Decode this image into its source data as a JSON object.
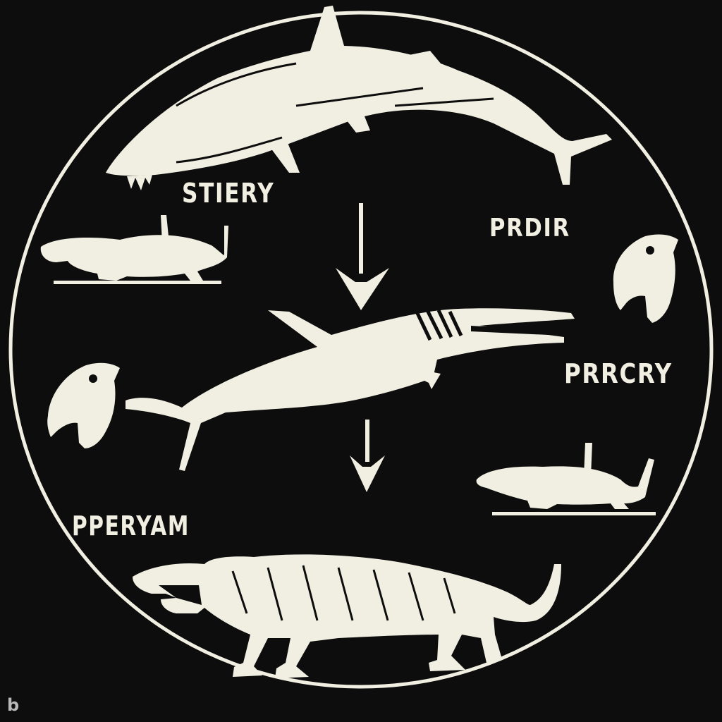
{
  "diagram": {
    "labels": {
      "top": "STIERY",
      "upper_right": "PRDIR",
      "right": "PRRCRY",
      "lower_left": "PPERYAM"
    }
  },
  "watermark": "b",
  "colors": {
    "background": "#0d0d0d",
    "ink": "#f1efe2"
  }
}
